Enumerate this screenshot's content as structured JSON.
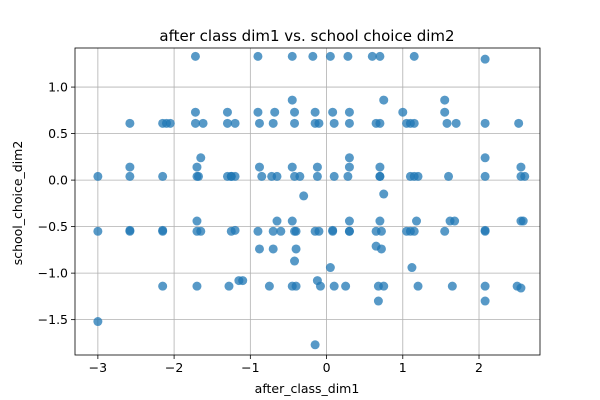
{
  "chart_data": {
    "type": "scatter",
    "title": "after class dim1 vs. school choice dim2",
    "xlabel": "after_class_dim1",
    "ylabel": "school_choice_dim2",
    "xlim": [
      -3.3,
      2.8
    ],
    "ylim": [
      -1.88,
      1.42
    ],
    "xticks": [
      -3,
      -2,
      -1,
      0,
      1,
      2
    ],
    "xtick_labels": [
      "−3",
      "−2",
      "−1",
      "0",
      "1",
      "2"
    ],
    "yticks": [
      -1.5,
      -1.0,
      -0.5,
      0.0,
      0.5,
      1.0
    ],
    "ytick_labels": [
      "−1.5",
      "−1.0",
      "−0.5",
      "0.0",
      "0.5",
      "1.0"
    ],
    "grid": true,
    "marker_color": "#1f77b4",
    "marker_alpha": 0.75,
    "x": [
      -3.0,
      -3.0,
      -3.0,
      -2.58,
      -2.58,
      -2.58,
      -2.58,
      -2.58,
      -2.15,
      -2.15,
      -2.15,
      -2.15,
      -2.1,
      -2.05,
      -2.15,
      -1.72,
      -1.72,
      -1.72,
      -1.7,
      -1.68,
      -1.65,
      -1.7,
      -1.7,
      -1.65,
      -1.62,
      -1.7,
      -1.7,
      -1.3,
      -1.3,
      -1.3,
      -1.25,
      -1.25,
      -1.2,
      -1.2,
      -1.15,
      -1.28,
      -1.25,
      -1.2,
      -1.1,
      -0.9,
      -0.9,
      -0.88,
      -0.88,
      -0.85,
      -0.9,
      -0.88,
      -0.75,
      -0.7,
      -0.65,
      -0.7,
      -0.65,
      -0.7,
      -0.6,
      -0.68,
      -0.72,
      -0.45,
      -0.45,
      -0.42,
      -0.42,
      -0.45,
      -0.42,
      -0.45,
      -0.4,
      -0.4,
      -0.42,
      -0.45,
      -0.4,
      -0.35,
      -0.3,
      -0.42,
      -0.18,
      -0.15,
      -0.15,
      -0.1,
      -0.12,
      -0.15,
      -0.1,
      -0.12,
      -0.08,
      -0.15,
      -0.12,
      0.05,
      0.08,
      0.1,
      0.1,
      0.08,
      0.05,
      0.1,
      0.08,
      0.28,
      0.3,
      0.3,
      0.3,
      0.28,
      0.3,
      0.3,
      0.25,
      0.3,
      0.3,
      0.6,
      0.65,
      0.7,
      0.7,
      0.75,
      0.7,
      0.7,
      0.65,
      0.72,
      0.75,
      0.68,
      0.75,
      0.7,
      0.72,
      0.65,
      0.7,
      0.68,
      1.0,
      1.05,
      1.1,
      1.15,
      1.1,
      1.15,
      1.05,
      1.1,
      1.18,
      1.2,
      1.15,
      1.2,
      1.12,
      1.15,
      1.55,
      1.55,
      1.58,
      1.6,
      1.62,
      1.68,
      1.7,
      1.65,
      1.55,
      2.08,
      2.08,
      2.08,
      2.08,
      2.08,
      2.08,
      2.08,
      2.08,
      2.52,
      2.55,
      2.55,
      2.6,
      2.55,
      2.58,
      2.5,
      2.55
    ],
    "y": [
      0.04,
      -0.55,
      -1.52,
      0.61,
      0.14,
      0.04,
      -0.54,
      -0.55,
      0.61,
      0.04,
      -0.54,
      -1.14,
      0.61,
      0.61,
      -0.55,
      1.33,
      0.73,
      0.61,
      0.14,
      0.04,
      0.24,
      -0.44,
      -0.55,
      -0.55,
      0.61,
      0.04,
      -1.14,
      0.73,
      0.61,
      0.04,
      0.04,
      -0.55,
      -0.54,
      0.61,
      -1.08,
      -1.14,
      0.04,
      0.04,
      -1.08,
      1.33,
      0.73,
      0.61,
      0.14,
      0.04,
      -0.55,
      -0.74,
      -1.14,
      0.61,
      0.04,
      -0.55,
      -0.44,
      -0.74,
      -0.55,
      0.73,
      0.04,
      1.33,
      0.86,
      0.73,
      0.61,
      0.14,
      0.04,
      -0.44,
      -0.55,
      -0.74,
      -0.87,
      -1.14,
      -1.14,
      0.04,
      -0.17,
      -0.55,
      1.33,
      0.73,
      0.61,
      0.61,
      0.04,
      -0.55,
      -0.55,
      -1.08,
      -1.14,
      -1.77,
      0.14,
      1.33,
      0.73,
      0.61,
      0.04,
      -0.54,
      -0.94,
      -1.14,
      -0.55,
      1.33,
      0.73,
      0.61,
      0.24,
      0.04,
      -0.44,
      -0.55,
      -1.14,
      -0.55,
      0.14,
      1.33,
      0.61,
      0.61,
      0.04,
      0.86,
      1.33,
      -0.44,
      -0.55,
      -0.74,
      -1.14,
      -1.3,
      -0.15,
      0.14,
      -0.55,
      -0.71,
      0.04,
      -1.14,
      0.73,
      0.61,
      0.61,
      0.61,
      0.04,
      0.04,
      -0.55,
      -0.55,
      -0.44,
      0.04,
      -0.55,
      -1.14,
      -0.94,
      1.33,
      0.86,
      0.73,
      0.61,
      0.04,
      -0.44,
      -0.44,
      0.61,
      -1.14,
      -0.55,
      1.3,
      0.24,
      0.61,
      0.04,
      -0.55,
      -0.54,
      -1.14,
      -1.3,
      0.61,
      0.14,
      0.04,
      0.04,
      -0.44,
      -0.44,
      -1.14,
      -1.16
    ]
  }
}
